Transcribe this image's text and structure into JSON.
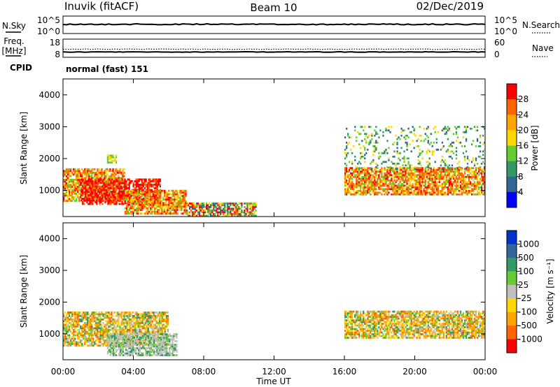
{
  "header": {
    "station": "Inuvik (fitACF)",
    "beam": "Beam 10",
    "date": "02/Dec/2019"
  },
  "noise_panel": {
    "left_label": "N.Sky",
    "right_label": "N.Search",
    "left_ticks": [
      "10^5",
      "10^0"
    ],
    "right_ticks": [
      "10^5",
      "10^0"
    ]
  },
  "freq_panel": {
    "left_label_line1": "Freq.",
    "left_label_line2": "[MHz]",
    "right_label": "Nave",
    "left_ticks": [
      "18",
      "8"
    ],
    "right_ticks": [
      "60",
      "0"
    ]
  },
  "cpid": {
    "label": "CPID",
    "value": "normal (fast) 151"
  },
  "chart_data": [
    {
      "type": "heatmap",
      "quantity": "Power",
      "ylabel": "Slant Range [km]",
      "ylim": [
        180,
        4500
      ],
      "yticks": [
        "1000",
        "2000",
        "3000",
        "4000"
      ],
      "colorbar_label": "Power [dB]",
      "colorbar_ticks": [
        "28",
        "24",
        "20",
        "16",
        "12",
        "8",
        "4"
      ],
      "colorbar_colors": [
        "#ff0000",
        "#ff6600",
        "#ffa500",
        "#ffd700",
        "#66cc33",
        "#339966",
        "#336699",
        "#0000ff"
      ],
      "regions": [
        {
          "t": [
            0.0,
            3.5
          ],
          "r": [
            650,
            1650
          ],
          "level": "high"
        },
        {
          "t": [
            1.0,
            5.5
          ],
          "r": [
            550,
            1350
          ],
          "level": "max"
        },
        {
          "t": [
            3.5,
            7.0
          ],
          "r": [
            250,
            1000
          ],
          "level": "high"
        },
        {
          "t": [
            7.0,
            11.0
          ],
          "r": [
            180,
            600
          ],
          "level": "mid"
        },
        {
          "t": [
            2.5,
            3.0
          ],
          "r": [
            1850,
            2100
          ],
          "level": "low"
        },
        {
          "t": [
            16.0,
            24.0
          ],
          "r": [
            850,
            1700
          ],
          "level": "high"
        },
        {
          "t": [
            16.0,
            24.0
          ],
          "r": [
            1650,
            3000
          ],
          "level": "sparse"
        }
      ]
    },
    {
      "type": "heatmap",
      "quantity": "Velocity",
      "xlabel": "Time UT",
      "ylabel": "Slant Range [km]",
      "xticks": [
        "00:00",
        "04:00",
        "08:00",
        "12:00",
        "16:00",
        "20:00",
        "00:00"
      ],
      "ylim": [
        180,
        4500
      ],
      "yticks": [
        "1000",
        "2000",
        "3000",
        "4000"
      ],
      "colorbar_label": "Velocity [m s⁻¹]",
      "colorbar_ticks": [
        "1000",
        "500",
        "100",
        "25",
        "-25",
        "-100",
        "-500",
        "-1000"
      ],
      "colorbar_colors": [
        "#0033cc",
        "#336699",
        "#339966",
        "#66cc33",
        "#c0c0c0",
        "#ffd700",
        "#ffa500",
        "#ff6600",
        "#ff0000"
      ],
      "regions": [
        {
          "t": [
            0.0,
            6.0
          ],
          "r": [
            600,
            1700
          ],
          "level": "negative"
        },
        {
          "t": [
            2.5,
            6.5
          ],
          "r": [
            300,
            1000
          ],
          "level": "ground"
        },
        {
          "t": [
            16.0,
            24.0
          ],
          "r": [
            850,
            1700
          ],
          "level": "negative"
        }
      ]
    }
  ]
}
